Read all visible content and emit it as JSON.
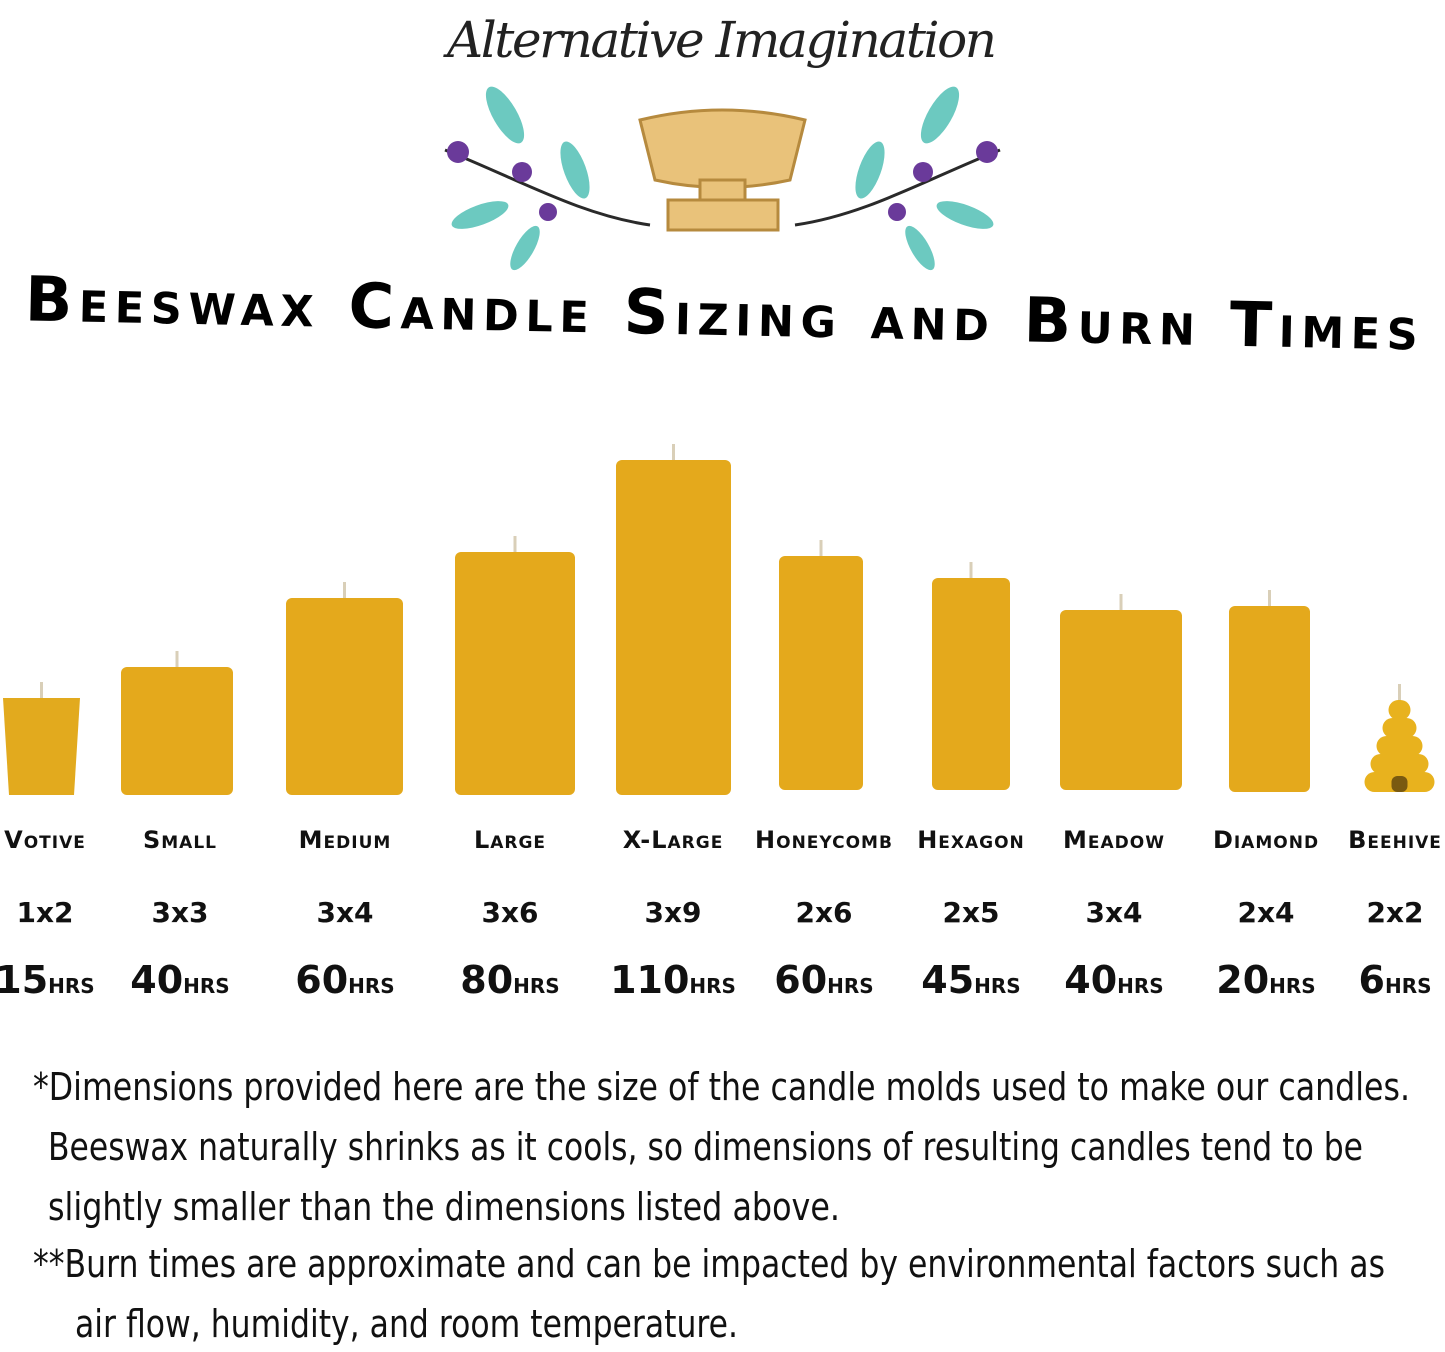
{
  "brand": "Alternative Imagination",
  "title": "Beeswax Candle Sizing and Burn Times",
  "candles": [
    {
      "name": "Votive",
      "size": "1x2",
      "burn": {
        "value": "15",
        "unit": "HRS"
      }
    },
    {
      "name": "Small",
      "size": "3x3",
      "burn": {
        "value": "40",
        "unit": "HRS"
      }
    },
    {
      "name": "Medium",
      "size": "3x4",
      "burn": {
        "value": "60",
        "unit": "HRS"
      }
    },
    {
      "name": "Large",
      "size": "3x6",
      "burn": {
        "value": "80",
        "unit": "HRS"
      }
    },
    {
      "name": "X-Large",
      "size": "3x9",
      "burn": {
        "value": "110",
        "unit": "HRS"
      }
    },
    {
      "name": "Honeycomb",
      "size": "2x6",
      "burn": {
        "value": "60",
        "unit": "HRS"
      }
    },
    {
      "name": "Hexagon",
      "size": "2x5",
      "burn": {
        "value": "45",
        "unit": "HRS"
      }
    },
    {
      "name": "Meadow",
      "size": "3x4",
      "burn": {
        "value": "40",
        "unit": "HRS"
      }
    },
    {
      "name": "Diamond",
      "size": "2x4",
      "burn": {
        "value": "20",
        "unit": "HRS"
      }
    },
    {
      "name": "Beehive",
      "size": "2x2",
      "burn": {
        "value": "6",
        "unit": "HRS"
      }
    }
  ],
  "notes": [
    "*Dimensions provided here are the size of the candle molds used to make our candles.",
    "Beeswax naturally shrinks as it cools, so dimensions of resulting candles tend to be",
    "slightly smaller than the dimensions listed above.",
    "**Burn times are approximate and can be impacted by environmental factors such as",
    "air flow, humidity, and room temperature."
  ]
}
